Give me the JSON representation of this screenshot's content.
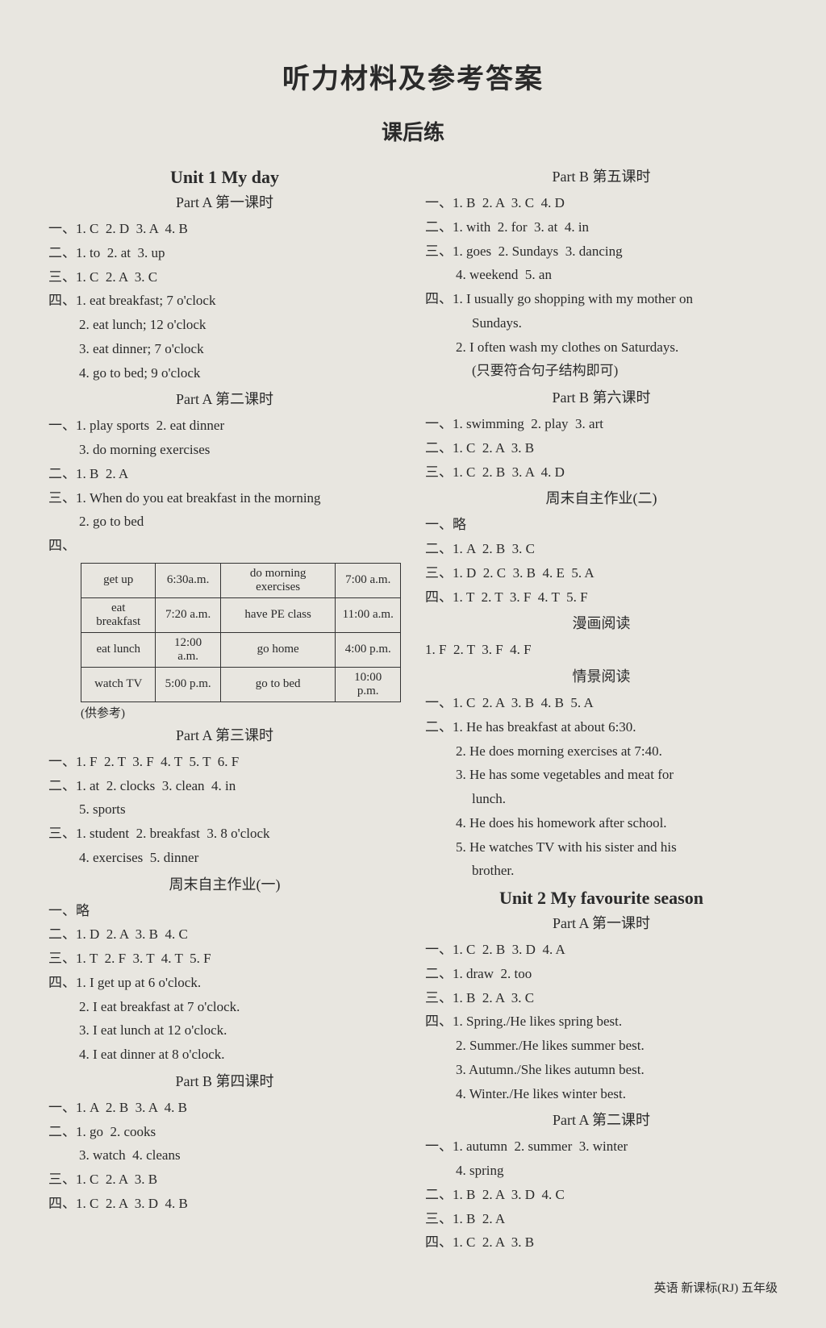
{
  "main_title": "听力材料及参考答案",
  "sub_title": "课后练",
  "footer": "英语  新课标(RJ)  五年级",
  "left": {
    "unit1_title": "Unit 1   My day",
    "partA1_title": "Part A 第一课时",
    "partA1": [
      "一、1. C  2. D  3. A  4. B",
      "二、1. to  2. at  3. up",
      "三、1. C  2. A  3. C",
      "四、1. eat breakfast; 7 o'clock",
      "2. eat lunch; 12 o'clock",
      "3. eat dinner; 7 o'clock",
      "4. go to bed; 9 o'clock"
    ],
    "partA2_title": "Part A 第二课时",
    "partA2": [
      "一、1. play sports  2. eat dinner",
      "3. do morning exercises",
      "二、1. B  2. A",
      "三、1. When do you eat breakfast in the morning",
      "2. go to bed",
      "四、"
    ],
    "table": {
      "rows": [
        [
          "get up",
          "6:30a.m.",
          "do morning exercises",
          "7:00 a.m."
        ],
        [
          "eat breakfast",
          "7:20 a.m.",
          "have PE class",
          "11:00 a.m."
        ],
        [
          "eat lunch",
          "12:00 a.m.",
          "go home",
          "4:00 p.m."
        ],
        [
          "watch TV",
          "5:00 p.m.",
          "go to bed",
          "10:00 p.m."
        ]
      ],
      "note": "(供参考)"
    },
    "partA3_title": "Part A 第三课时",
    "partA3": [
      "一、1. F  2. T  3. F  4. T  5. T  6. F",
      "二、1. at  2. clocks  3. clean  4. in",
      "5. sports",
      "三、1. student  2. breakfast  3. 8 o'clock",
      "4. exercises  5. dinner"
    ],
    "weekend1_title": "周末自主作业(一)",
    "weekend1": [
      "一、略",
      "二、1. D  2. A  3. B  4. C",
      "三、1. T  2. F  3. T  4. T  5. F",
      "四、1. I get up at 6 o'clock.",
      "2. I eat breakfast at 7 o'clock.",
      "3. I eat lunch at 12 o'clock.",
      "4. I eat dinner at 8 o'clock."
    ],
    "partB4_title": "Part B 第四课时",
    "partB4": [
      "一、1. A  2. B  3. A  4. B",
      "二、1. go  2. cooks",
      "3. watch  4. cleans",
      "三、1. C  2. A  3. B",
      "四、1. C  2. A  3. D  4. B"
    ]
  },
  "right": {
    "partB5_title": "Part B 第五课时",
    "partB5": [
      "一、1. B  2. A  3. C  4. D",
      "二、1. with  2. for  3. at  4. in",
      "三、1. goes  2. Sundays  3. dancing",
      "4. weekend  5. an",
      "四、1. I usually go shopping with my mother on",
      "Sundays.",
      "2. I often wash my clothes on Saturdays.",
      "(只要符合句子结构即可)"
    ],
    "partB6_title": "Part B 第六课时",
    "partB6": [
      "一、1. swimming  2. play  3. art",
      "二、1. C  2. A  3. B",
      "三、1. C  2. B  3. A  4. D"
    ],
    "weekend2_title": "周末自主作业(二)",
    "weekend2": [
      "一、略",
      "二、1. A  2. B  3. C",
      "三、1. D  2. C  3. B  4. E  5. A",
      "四、1. T  2. T  3. F  4. T  5. F"
    ],
    "comic_title": "漫画阅读",
    "comic": [
      "1. F  2. T  3. F  4. F"
    ],
    "scene_title": "情景阅读",
    "scene": [
      "一、1. C  2. A  3. B  4. B  5. A",
      "二、1. He has breakfast at about 6:30.",
      "2. He does morning exercises at 7:40.",
      "3. He has some vegetables and meat for",
      "lunch.",
      "4. He does his homework after school.",
      "5. He watches TV with his sister and his",
      "brother."
    ],
    "unit2_title": "Unit 2   My favourite season",
    "u2partA1_title": "Part A 第一课时",
    "u2partA1": [
      "一、1. C  2. B  3. D  4. A",
      "二、1. draw  2. too",
      "三、1. B  2. A  3. C",
      "四、1. Spring./He likes spring best.",
      "2. Summer./He likes summer best.",
      "3. Autumn./She likes autumn best.",
      "4. Winter./He likes winter best."
    ],
    "u2partA2_title": "Part A 第二课时",
    "u2partA2": [
      "一、1. autumn  2. summer  3. winter",
      "4. spring",
      "二、1. B  2. A  3. D  4. C",
      "三、1. B  2. A",
      "四、1. C  2. A  3. B"
    ]
  }
}
